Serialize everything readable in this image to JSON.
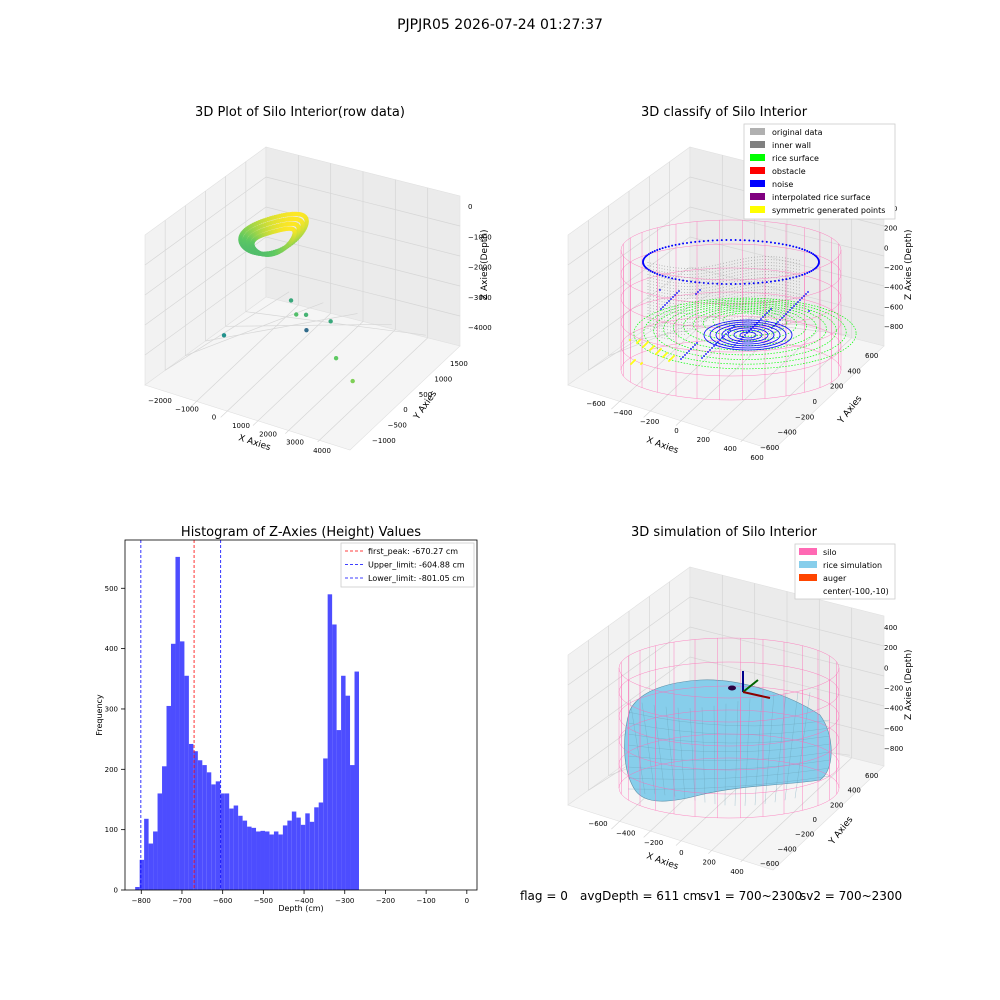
{
  "figure": {
    "suptitle": "PJPJR05 2026-07-24 01:27:37",
    "footer": {
      "flag": "flag = 0",
      "avg_depth": "avgDepth = 611 cm",
      "sv1": "sv1 = 700~2300",
      "sv2": "sv2 = 700~2300"
    }
  },
  "colors": {
    "hist_bar": "#4d4dff",
    "first_peak": "#ff0000",
    "limit_line": "#0000ff",
    "silo_wire": "#ff69b4",
    "rice_surface": "#00ff00",
    "noise": "#0000ff",
    "inner_wall": "#808080",
    "rice_sim": "#87ceeb",
    "auger": "#ff4500",
    "symmetric": "#ffff00",
    "interpolated": "#800080",
    "original": "#b0b0b0"
  },
  "chart_data": [
    {
      "type": "scatter",
      "title": "3D Plot of Silo Interior(row data)",
      "xlabel": "X Axies",
      "ylabel": "Y Axies",
      "zlabel": "Z Axies (Depth)",
      "xticks": [
        "−2000",
        "−1000",
        "0",
        "1000",
        "2000",
        "3000",
        "4000"
      ],
      "yticks": [
        "−1000",
        "−500",
        "0",
        "500",
        "1000",
        "1500"
      ],
      "zticks": [
        "0",
        "−1000",
        "−2000",
        "−3000",
        "−4000"
      ],
      "xlim": [
        -2300,
        4600
      ],
      "ylim": [
        -1300,
        1700
      ],
      "zlim": [
        -4300,
        200
      ],
      "colormap": "viridis",
      "points": [
        {
          "x": 0,
          "y": 0,
          "z": -600,
          "c": 0.95
        },
        {
          "x": -1980,
          "y": 520,
          "z": -3950,
          "c": 0.5
        },
        {
          "x": 1300,
          "y": 120,
          "z": -2550,
          "c": 0.7
        },
        {
          "x": 1600,
          "y": 180,
          "z": -2550,
          "c": 0.65
        },
        {
          "x": 1050,
          "y": 160,
          "z": -2250,
          "c": 0.6
        },
        {
          "x": 2100,
          "y": -200,
          "z": -2600,
          "c": 0.35
        },
        {
          "x": 3300,
          "y": -250,
          "z": -3100,
          "c": 0.75
        },
        {
          "x": 4000,
          "y": -300,
          "z": -3550,
          "c": 0.8
        },
        {
          "x": 2900,
          "y": -100,
          "z": -2300,
          "c": 0.6
        }
      ],
      "ring": {
        "x_center": 200,
        "y_center": 300,
        "z_center": -700,
        "rx": 900,
        "ry": 700,
        "thickness": 280
      }
    },
    {
      "type": "scatter",
      "title": "3D classify of Silo Interior",
      "xlabel": "X Axies",
      "ylabel": "Y Axies",
      "zlabel": "Z Axies (Depth)",
      "xticks": [
        "−600",
        "−400",
        "−200",
        "0",
        "200",
        "400",
        "600"
      ],
      "yticks": [
        "−600",
        "−400",
        "−200",
        "0",
        "200",
        "400",
        "600"
      ],
      "zticks": [
        "400",
        "200",
        "0",
        "−200",
        "−400",
        "−600",
        "−800"
      ],
      "xlim": [
        -700,
        700
      ],
      "ylim": [
        -700,
        700
      ],
      "zlim": [
        -900,
        450
      ],
      "legend": [
        {
          "label": "original data",
          "color": "#b0b0b0"
        },
        {
          "label": "inner wall",
          "color": "#808080"
        },
        {
          "label": "rice surface",
          "color": "#00ff00"
        },
        {
          "label": "obstacle",
          "color": "#ff0000"
        },
        {
          "label": "noise",
          "color": "#0000ff"
        },
        {
          "label": "interpolated rice surface",
          "color": "#800080"
        },
        {
          "label": "symmetric generated points",
          "color": "#ffff00"
        }
      ],
      "legend_loc": "upper right",
      "silo": {
        "radius": 640,
        "z_top": 100,
        "z_bottom": -900
      }
    },
    {
      "type": "bar",
      "title": "Histogram of Z-Axies (Height) Values",
      "xlabel": "Depth (cm)",
      "ylabel": "Frequency",
      "xlim": [
        -840,
        25
      ],
      "ylim": [
        0,
        580
      ],
      "xticks": [
        -800,
        -700,
        -600,
        -500,
        -400,
        -300,
        -200,
        -100,
        0
      ],
      "yticks": [
        0,
        100,
        200,
        300,
        400,
        500
      ],
      "bin_start": -815,
      "bin_width": 11,
      "values": [
        5,
        50,
        118,
        77,
        97,
        160,
        205,
        305,
        408,
        552,
        412,
        355,
        242,
        230,
        215,
        207,
        195,
        175,
        180,
        160,
        160,
        135,
        140,
        123,
        115,
        105,
        103,
        97,
        98,
        97,
        92,
        97,
        92,
        107,
        115,
        130,
        120,
        108,
        127,
        113,
        137,
        145,
        218,
        490,
        440,
        265,
        355,
        322,
        207,
        362
      ],
      "vlines": [
        {
          "x": -670.27,
          "label": "first_peak: -670.27 cm",
          "color": "#ff0000"
        },
        {
          "x": -604.88,
          "label": "Upper_limit: -604.88 cm",
          "color": "#0000ff"
        },
        {
          "x": -801.05,
          "label": "Lower_limit: -801.05 cm",
          "color": "#0000ff"
        }
      ],
      "legend_loc": "upper right"
    },
    {
      "type": "area",
      "title": "3D simulation of Silo Interior",
      "xlabel": "X Axies",
      "ylabel": "Y Axies",
      "zlabel": "Z Axies (Depth)",
      "xticks": [
        "−600",
        "−400",
        "−200",
        "0",
        "200",
        "400"
      ],
      "yticks": [
        "−600",
        "−400",
        "−200",
        "0",
        "200",
        "400",
        "600"
      ],
      "zticks": [
        "400",
        "200",
        "0",
        "−200",
        "−400",
        "−600",
        "−800"
      ],
      "xlim": [
        -700,
        500
      ],
      "ylim": [
        -700,
        700
      ],
      "zlim": [
        -900,
        450
      ],
      "legend": [
        {
          "label": "silo",
          "color": "#ff69b4"
        },
        {
          "label": "rice simulation",
          "color": "#87ceeb"
        },
        {
          "label": "auger",
          "color": "#ff4500"
        },
        {
          "label": "center(-100,-10)",
          "color": ""
        }
      ],
      "legend_loc": "upper right",
      "silo": {
        "radius": 640,
        "z_top": 100,
        "z_bottom": -900
      }
    }
  ]
}
